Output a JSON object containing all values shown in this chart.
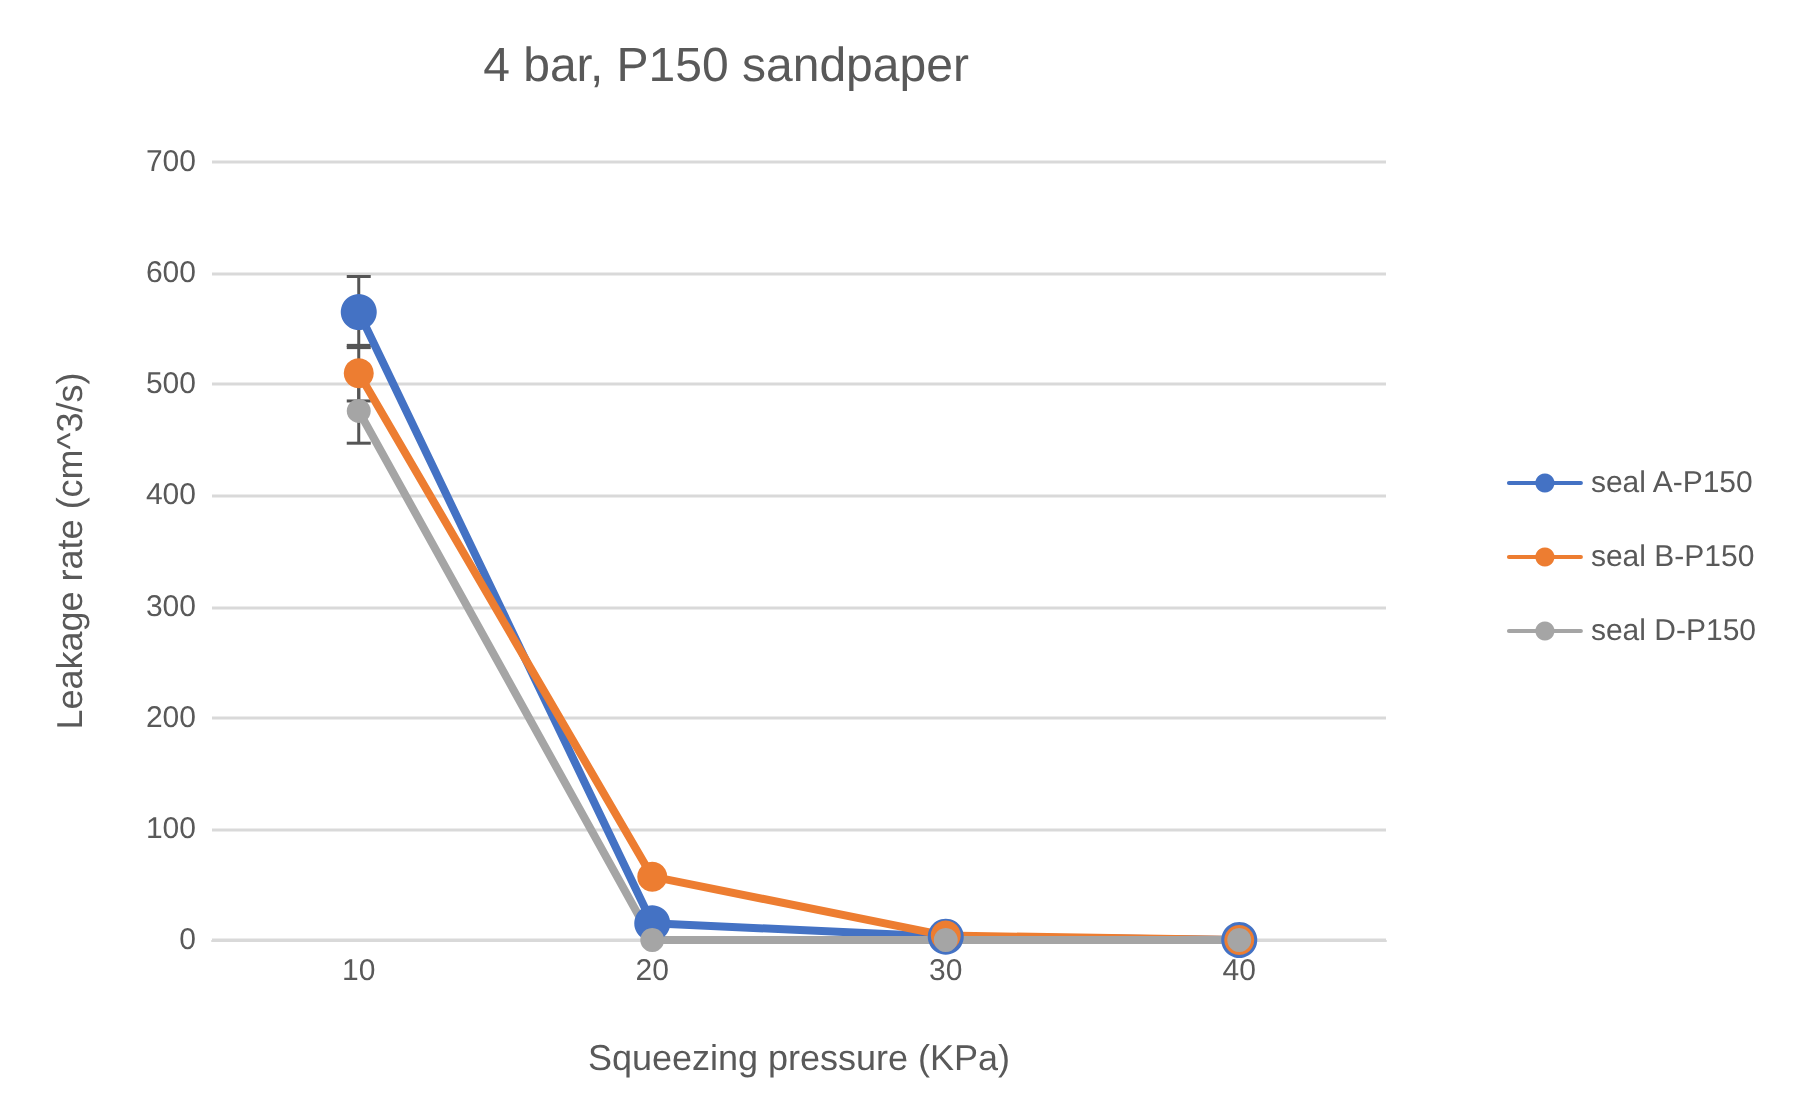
{
  "chart_data": {
    "type": "line",
    "title": "4 bar, P150 sandpaper",
    "xlabel": "Squeezing pressure (KPa)",
    "ylabel": "Leakage rate (cm^3/s)",
    "categories": [
      "10",
      "20",
      "30",
      "40"
    ],
    "series": [
      {
        "name": "seal A-P150",
        "color": "#4472c4",
        "values": [
          565,
          15,
          3,
          0
        ],
        "errors": [
          32,
          null,
          null,
          null
        ]
      },
      {
        "name": "seal B-P150",
        "color": "#ed7d31",
        "values": [
          510,
          57,
          4,
          0
        ],
        "errors": [
          25,
          null,
          null,
          null
        ]
      },
      {
        "name": "seal D-P150",
        "color": "#a5a5a5",
        "values": [
          476,
          0,
          0,
          0
        ],
        "errors": [
          29,
          null,
          null,
          null
        ]
      }
    ],
    "ylim": [
      0,
      700
    ],
    "yticks": [
      0,
      100,
      200,
      300,
      400,
      500,
      600,
      700
    ],
    "grid": "y",
    "legend": "right",
    "marker": "circle",
    "line_style": "solid"
  }
}
